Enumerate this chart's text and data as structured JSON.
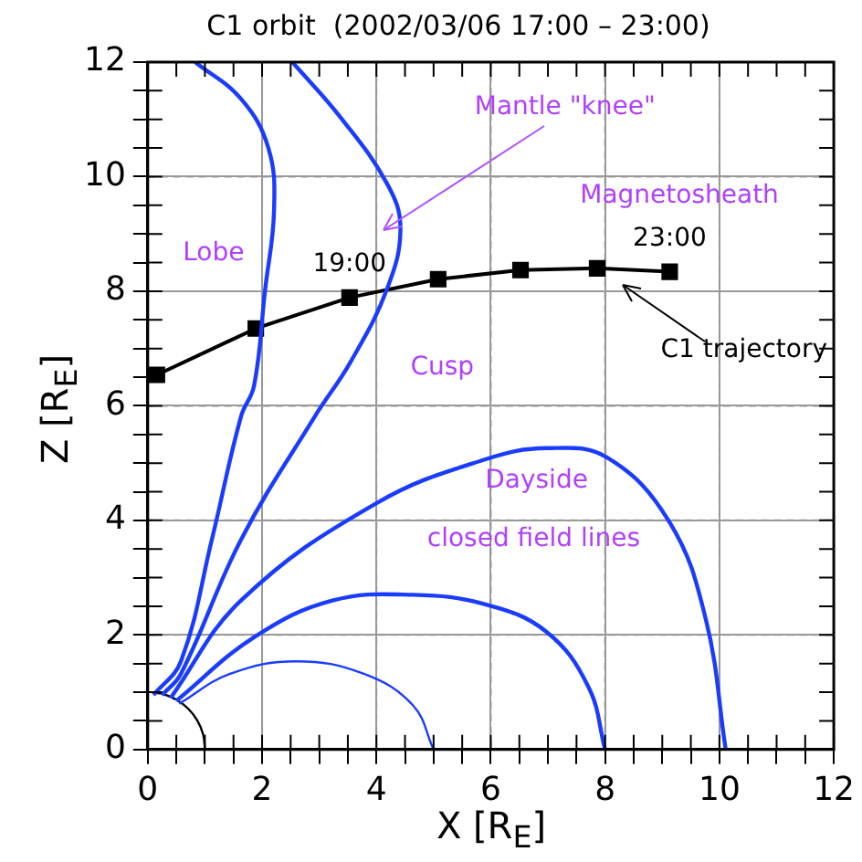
{
  "chart_data": {
    "type": "line",
    "title": "C1 orbit  (2002/03/06 17:00 – 23:00)",
    "xlabel": "X [R$_{E}$]",
    "ylabel": "Z [R$_{E}$]",
    "xlim": [
      0,
      12
    ],
    "ylim": [
      0,
      12
    ],
    "xticks": [
      0,
      {
        "value": 0.5,
        "label": null
      },
      2,
      {
        "value": 1,
        "label": null
      },
      {
        "value": 1.5,
        "label": null
      },
      {
        "value": 2.5,
        "label": null
      },
      {
        "value": 3,
        "label": null
      },
      {
        "value": 3.5,
        "label": null
      },
      4,
      {
        "value": 4.5,
        "label": null
      },
      {
        "value": 5,
        "label": null
      },
      {
        "value": 5.5,
        "label": null
      },
      6,
      {
        "value": 6.5,
        "label": null
      },
      {
        "value": 7,
        "label": null
      },
      {
        "value": 7.5,
        "label": null
      },
      8,
      {
        "value": 8.5,
        "label": null
      },
      {
        "value": 9,
        "label": null
      },
      {
        "value": 9.5,
        "label": null
      },
      10,
      {
        "value": 10.5,
        "label": null
      },
      {
        "value": 11,
        "label": null
      },
      {
        "value": 11.5,
        "label": null
      },
      12
    ],
    "yticks": [
      0,
      {
        "value": 0.5,
        "label": null
      },
      {
        "value": 1,
        "label": null
      },
      {
        "value": 1.5,
        "label": null
      },
      2,
      {
        "value": 2.5,
        "label": null
      },
      {
        "value": 3,
        "label": null
      },
      {
        "value": 3.5,
        "label": null
      },
      4,
      {
        "value": 4.5,
        "label": null
      },
      {
        "value": 5,
        "label": null
      },
      {
        "value": 5.5,
        "label": null
      },
      6,
      {
        "value": 6.5,
        "label": null
      },
      {
        "value": 7,
        "label": null
      },
      {
        "value": 7.5,
        "label": null
      },
      8,
      {
        "value": 8.5,
        "label": null
      },
      {
        "value": 9,
        "label": null
      },
      {
        "value": 9.5,
        "label": null
      },
      10,
      {
        "value": 10.5,
        "label": null
      },
      {
        "value": 11,
        "label": null
      },
      {
        "value": 11.5,
        "label": null
      },
      12
    ],
    "grid": true,
    "legend": false,
    "series": [
      {
        "color": "#1a3cff",
        "marker": "none",
        "x": [
          0.1,
          0.58,
          1.12,
          1.63,
          1.86,
          2.05,
          2.21,
          2.11,
          1.63,
          0.83
        ],
        "values": [
          0.95,
          1.54,
          3.66,
          5.81,
          6.35,
          8.0,
          9.43,
          10.5,
          11.36,
          12.0
        ]
      },
      {
        "color": "#1a3cff",
        "marker": "none",
        "x": [
          0.25,
          0.58,
          1.63,
          2.92,
          3.55,
          4.19,
          4.42,
          4.19,
          3.36,
          2.53
        ],
        "values": [
          0.95,
          1.32,
          3.66,
          5.81,
          6.77,
          8.05,
          9.1,
          9.87,
          11.05,
          12.0
        ]
      },
      {
        "color": "#1a3cff",
        "marker": "none",
        "x": [
          0.4,
          1.63,
          4.0,
          5.92,
          6.98,
          8.03,
          9.12,
          9.76,
          10.11
        ],
        "values": [
          0.9,
          2.6,
          4.3,
          5.07,
          5.26,
          5.1,
          3.98,
          2.28,
          0
        ]
      },
      {
        "color": "#1a3cff",
        "marker": "none",
        "x": [
          0.5,
          1.86,
          3.23,
          4.64,
          5.92,
          6.98,
          7.71,
          8.0
        ],
        "values": [
          0.85,
          1.96,
          2.6,
          2.7,
          2.53,
          2.05,
          1.09,
          0
        ]
      },
      {
        "color": "#1a3cff",
        "marker": "none",
        "x": [
          0.55,
          1.44,
          2.6,
          3.78,
          4.64,
          5.0
        ],
        "values": [
          0.8,
          1.32,
          1.54,
          1.32,
          0.77,
          0
        ]
      },
      {
        "color": "#000000",
        "marker": "none",
        "x": [
          1,
          0.97,
          0.87,
          0.71,
          0.5,
          0.26,
          0.1
        ],
        "values": [
          0,
          0.26,
          0.5,
          0.71,
          0.87,
          0.97,
          0.99
        ]
      },
      {
        "color": "#000000",
        "marker": "square",
        "x": [
          0.16,
          1.89,
          3.53,
          5.08,
          6.52,
          7.86,
          9.13
        ],
        "values": [
          6.54,
          7.35,
          7.89,
          8.21,
          8.37,
          8.4,
          8.34
        ]
      }
    ],
    "annotations": [
      {
        "text": "19:00",
        "x": 3.53,
        "y": 7.89
      },
      {
        "text": "23:00",
        "x": 9.13,
        "y": 8.34
      },
      "C1 trajectory",
      "Lobe",
      "Mantle \"knee\"",
      "Magnetosheath",
      "Cusp",
      "Dayside",
      "closed field lines"
    ]
  }
}
